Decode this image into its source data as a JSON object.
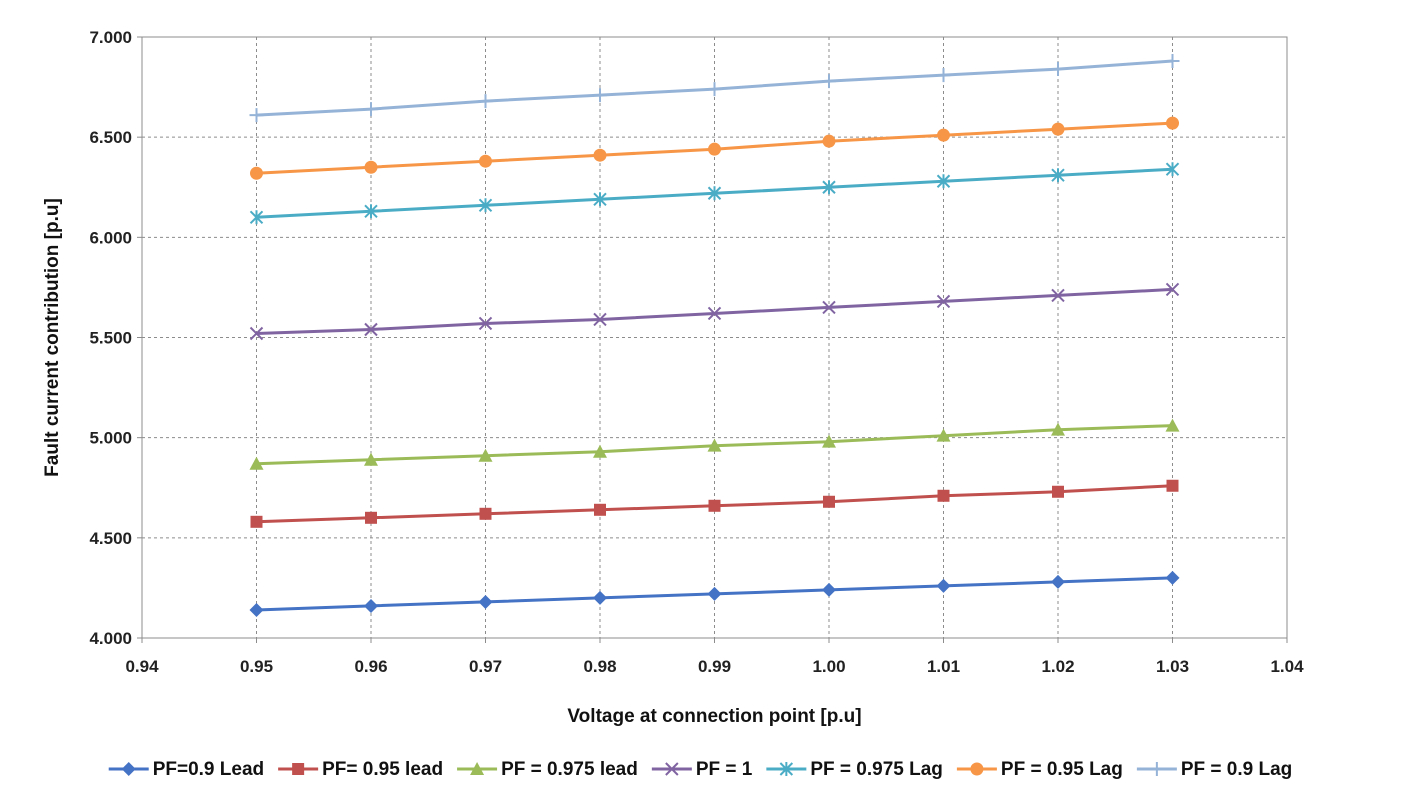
{
  "chart_data": {
    "type": "line",
    "title": "",
    "xlabel": "Voltage at connection point [p.u]",
    "ylabel": "Fault current contribution [p.u]",
    "xlim": [
      0.94,
      1.04
    ],
    "ylim": [
      4.0,
      7.0
    ],
    "xticks": [
      "0.94",
      "0.95",
      "0.96",
      "0.97",
      "0.98",
      "0.99",
      "1.00",
      "1.01",
      "1.02",
      "1.03",
      "1.04"
    ],
    "yticks": [
      "4.000",
      "4.500",
      "5.000",
      "5.500",
      "6.000",
      "6.500",
      "7.000"
    ],
    "grid": true,
    "legend_position": "bottom",
    "x": [
      0.95,
      0.96,
      0.97,
      0.98,
      0.99,
      1.0,
      1.01,
      1.02,
      1.03
    ],
    "series": [
      {
        "name": "PF=0.9 Lead",
        "color": "#4472C4",
        "marker": "diamond",
        "values": [
          4.14,
          4.16,
          4.18,
          4.2,
          4.22,
          4.24,
          4.26,
          4.28,
          4.3
        ]
      },
      {
        "name": "PF= 0.95 lead",
        "color": "#C0504D",
        "marker": "square",
        "values": [
          4.58,
          4.6,
          4.62,
          4.64,
          4.66,
          4.68,
          4.71,
          4.73,
          4.76
        ]
      },
      {
        "name": "PF = 0.975 lead",
        "color": "#9BBB59",
        "marker": "triangle",
        "values": [
          4.87,
          4.89,
          4.91,
          4.93,
          4.96,
          4.98,
          5.01,
          5.04,
          5.06
        ]
      },
      {
        "name": "PF = 1",
        "color": "#8064A2",
        "marker": "x",
        "values": [
          5.52,
          5.54,
          5.57,
          5.59,
          5.62,
          5.65,
          5.68,
          5.71,
          5.74
        ]
      },
      {
        "name": "PF = 0.975 Lag",
        "color": "#4BACC6",
        "marker": "star",
        "values": [
          6.1,
          6.13,
          6.16,
          6.19,
          6.22,
          6.25,
          6.28,
          6.31,
          6.34
        ]
      },
      {
        "name": "PF = 0.95 Lag",
        "color": "#F79646",
        "marker": "circle",
        "values": [
          6.32,
          6.35,
          6.38,
          6.41,
          6.44,
          6.48,
          6.51,
          6.54,
          6.57
        ]
      },
      {
        "name": "PF = 0.9 Lag",
        "color": "#95B3D7",
        "marker": "plus",
        "values": [
          6.61,
          6.64,
          6.68,
          6.71,
          6.74,
          6.78,
          6.81,
          6.84,
          6.88
        ]
      }
    ]
  }
}
